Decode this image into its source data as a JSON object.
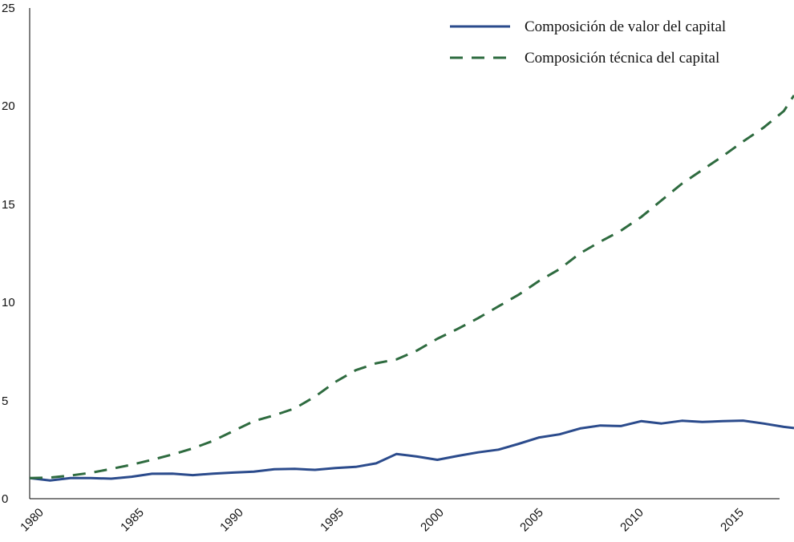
{
  "chart_data": {
    "type": "line",
    "title": "",
    "xlabel": "",
    "ylabel": "",
    "xlim": [
      1980,
      2017.5
    ],
    "ylim": [
      0,
      25
    ],
    "grid": false,
    "legend_position": "top-right",
    "yticks": [
      0,
      5,
      10,
      15,
      20,
      25
    ],
    "yticks_labels": [
      "0",
      "5",
      "10",
      "15",
      "20",
      "25"
    ],
    "xticks": [
      1980,
      1985,
      1990,
      1995,
      2000,
      2005,
      2010,
      2015
    ],
    "xticks_labels": [
      "1980",
      "1985",
      "1990",
      "1995",
      "2000",
      "2005",
      "2010",
      "2015"
    ],
    "x": [
      1980,
      1981,
      1982,
      1983,
      1984,
      1985,
      1986,
      1987,
      1988,
      1989,
      1990,
      1991,
      1992,
      1993,
      1994,
      1995,
      1996,
      1997,
      1998,
      1999,
      2000,
      2001,
      2002,
      2003,
      2004,
      2005,
      2006,
      2007,
      2008,
      2009,
      2010,
      2011,
      2012,
      2013,
      2014,
      2015,
      2016,
      2017,
      2017.5
    ],
    "series": [
      {
        "name": "Composición de valor del capital",
        "style": "solid",
        "color": "#2b4b8c",
        "values": [
          1.05,
          0.93,
          1.05,
          1.05,
          1.02,
          1.12,
          1.27,
          1.28,
          1.2,
          1.28,
          1.33,
          1.38,
          1.5,
          1.52,
          1.47,
          1.56,
          1.62,
          1.8,
          2.28,
          2.15,
          1.98,
          2.18,
          2.36,
          2.5,
          2.8,
          3.12,
          3.28,
          3.58,
          3.73,
          3.7,
          3.95,
          3.83,
          3.97,
          3.91,
          3.95,
          3.98,
          3.83,
          3.66,
          3.6
        ]
      },
      {
        "name": "Composición técnica del capital",
        "style": "dashed",
        "color": "#2e6b3f",
        "values": [
          1.05,
          1.08,
          1.18,
          1.32,
          1.52,
          1.73,
          1.98,
          2.25,
          2.56,
          2.95,
          3.45,
          3.95,
          4.25,
          4.6,
          5.2,
          5.95,
          6.55,
          6.9,
          7.1,
          7.55,
          8.15,
          8.65,
          9.2,
          9.8,
          10.4,
          11.1,
          11.7,
          12.5,
          13.1,
          13.65,
          14.35,
          15.2,
          16.05,
          16.75,
          17.45,
          18.2,
          18.9,
          19.75,
          20.55
        ]
      }
    ]
  }
}
